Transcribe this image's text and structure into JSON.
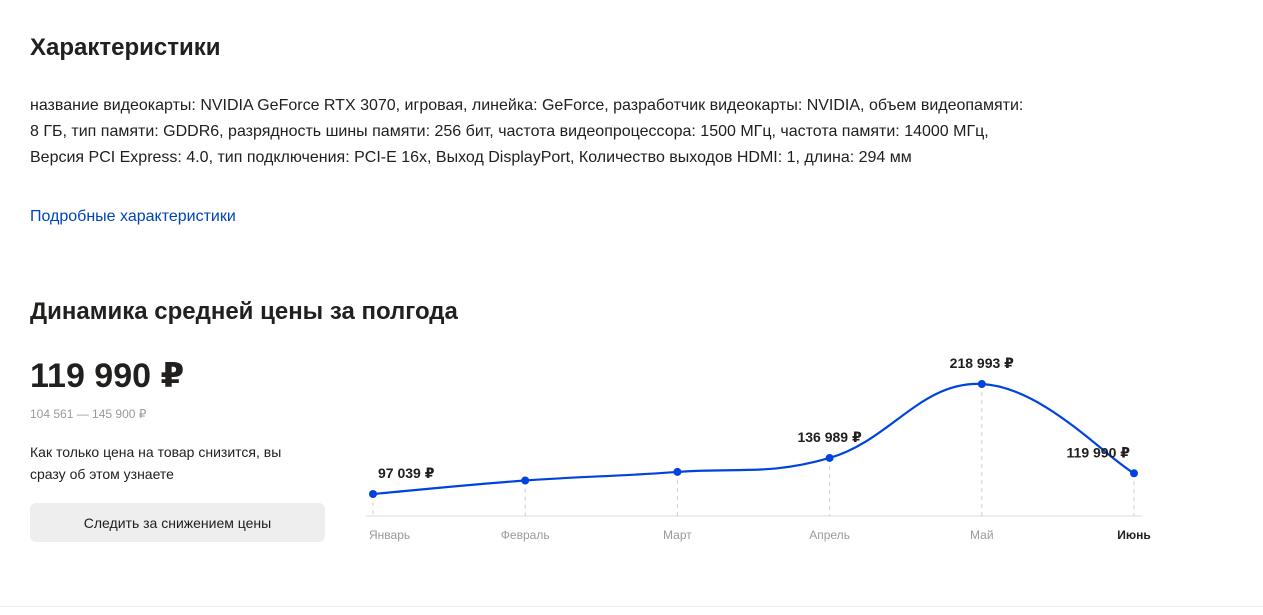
{
  "specs": {
    "title": "Характеристики",
    "line1": "название видеокарты: NVIDIA GeForce RTX 3070, игровая, линейка: GeForce, разработчик видеокарты: NVIDIA, объем видеопамяти:",
    "line2": "8 ГБ, тип памяти: GDDR6, разрядность шины памяти: 256 бит, частота видеопроцессора: 1500 МГц, частота памяти: 14000 МГц,",
    "line3": "Версия PCI Express: 4.0, тип подключения: PCI-E 16x, Выход DisplayPort, Количество выходов HDMI: 1, длина: 294 мм",
    "link_label": "Подробные характеристики"
  },
  "dynamics": {
    "title": "Динамика средней цены за полгода",
    "current_price": "119 990 ₽",
    "price_range": "104 561 — 145 900 ₽",
    "notice": "Как только цена на товар снизится, вы сразу об этом узнаете",
    "follow_button_label": "Следить за снижением цены"
  },
  "chart_data": {
    "type": "line",
    "categories": [
      "Январь",
      "Февраль",
      "Март",
      "Апрель",
      "Май",
      "Июнь"
    ],
    "values": [
      97039,
      112000,
      121500,
      136989,
      218993,
      119990
    ],
    "point_labels": [
      "97 039 ₽",
      "",
      "",
      "136 989 ₽",
      "218 993 ₽",
      "119 990 ₽"
    ],
    "highlighted_category": "Июнь",
    "line_color": "#0044dd",
    "grid": "vertical dashed",
    "legend": "none"
  }
}
